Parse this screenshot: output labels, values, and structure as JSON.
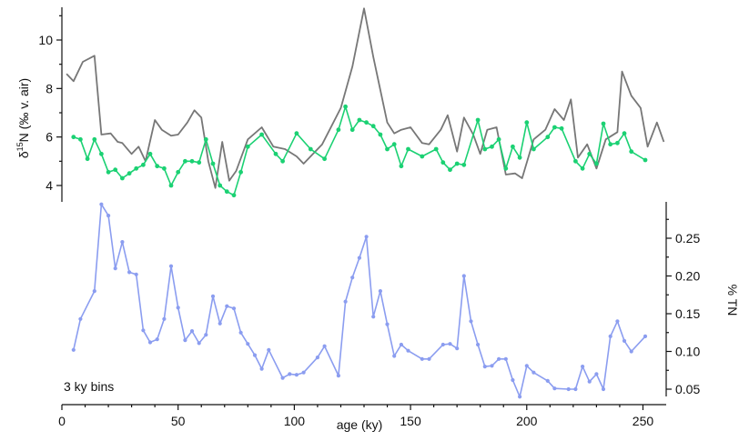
{
  "chart_data": {
    "type": "line",
    "x_axis": {
      "label": "age (ky)",
      "ticks": [
        0,
        50,
        100,
        150,
        200,
        250
      ],
      "range": [
        0,
        260
      ]
    },
    "y_axis_left": {
      "label_parts": [
        "δ",
        "15",
        "N (‰ v. air)"
      ],
      "ticks": [
        4,
        6,
        8,
        10
      ],
      "range": [
        3.4,
        11.4
      ]
    },
    "y_axis_right": {
      "label": "% TN",
      "ticks": [
        "0.05",
        "0.10",
        "0.15",
        "0.20",
        "0.25"
      ],
      "range": [
        0.04,
        0.29
      ]
    },
    "annotation": "3 ky bins",
    "colors": {
      "gray": "#777777",
      "green": "#1bd173",
      "blue": "#8b9df0"
    },
    "series": [
      {
        "axis": "left",
        "color": "#777777",
        "markers": false,
        "x": [
          2,
          5,
          9,
          14,
          17,
          21,
          24,
          26,
          30,
          33,
          36,
          40,
          43,
          47,
          50,
          54,
          57,
          60,
          63,
          66,
          69,
          72,
          75,
          80,
          86,
          91,
          96,
          101,
          104,
          112,
          120,
          125,
          130,
          134,
          140,
          143,
          146,
          150,
          155,
          158,
          163,
          166,
          170,
          173,
          177,
          180,
          183,
          187,
          191,
          195,
          198,
          203,
          208,
          212,
          216,
          219,
          222,
          226,
          230,
          234,
          239,
          241,
          245,
          249,
          252,
          256,
          259
        ],
        "y": [
          8.6,
          8.3,
          9.1,
          9.35,
          6.1,
          6.15,
          5.8,
          5.75,
          5.3,
          5.6,
          5.0,
          6.7,
          6.3,
          6.05,
          6.1,
          6.6,
          7.1,
          6.8,
          5.0,
          3.9,
          5.8,
          4.2,
          4.6,
          5.9,
          6.4,
          5.6,
          5.5,
          5.2,
          4.9,
          5.7,
          7.2,
          8.9,
          11.3,
          9.3,
          6.6,
          6.15,
          6.3,
          6.4,
          5.75,
          5.7,
          6.3,
          6.9,
          5.4,
          6.8,
          6.1,
          5.3,
          6.3,
          6.4,
          4.45,
          4.5,
          4.3,
          5.9,
          6.3,
          7.15,
          6.7,
          7.55,
          5.15,
          5.7,
          4.7,
          5.9,
          6.2,
          8.7,
          7.7,
          7.2,
          5.6,
          6.6,
          5.8
        ]
      },
      {
        "axis": "left",
        "color": "#1bd173",
        "markers": true,
        "x": [
          5,
          8,
          11,
          14,
          17,
          20,
          23,
          26,
          29,
          32,
          35,
          38,
          41,
          44,
          47,
          50,
          53,
          56,
          59,
          62,
          65,
          68,
          71,
          74,
          77,
          80,
          86,
          92,
          95,
          101,
          107,
          113,
          119,
          122,
          125,
          128,
          131,
          134,
          137,
          140,
          143,
          146,
          149,
          155,
          161,
          164,
          167,
          170,
          173,
          179,
          182,
          185,
          188,
          191,
          194,
          197,
          200,
          203,
          209,
          212,
          215,
          221,
          224,
          227,
          230,
          233,
          236,
          239,
          242,
          245,
          251
        ],
        "y": [
          6.0,
          5.9,
          5.1,
          5.9,
          5.3,
          4.55,
          4.65,
          4.3,
          4.5,
          4.7,
          4.85,
          5.3,
          4.8,
          4.7,
          4.0,
          4.55,
          5.0,
          5.0,
          4.95,
          5.9,
          4.9,
          4.0,
          3.75,
          3.6,
          4.55,
          5.6,
          6.1,
          5.3,
          5.0,
          6.15,
          5.5,
          5.1,
          6.3,
          7.25,
          6.3,
          6.7,
          6.6,
          6.45,
          6.1,
          5.5,
          5.7,
          4.8,
          5.5,
          5.2,
          5.5,
          4.95,
          4.65,
          4.9,
          4.85,
          6.7,
          5.5,
          5.6,
          5.9,
          4.7,
          5.6,
          5.15,
          6.6,
          5.5,
          6.0,
          6.4,
          6.35,
          5.0,
          4.7,
          5.3,
          4.9,
          6.55,
          5.7,
          5.75,
          6.15,
          5.4,
          5.05
        ]
      },
      {
        "axis": "right",
        "color": "#8b9df0",
        "markers": true,
        "x": [
          5,
          8,
          14,
          17,
          20,
          23,
          26,
          29,
          32,
          35,
          38,
          41,
          44,
          47,
          50,
          53,
          56,
          59,
          62,
          65,
          68,
          71,
          74,
          77,
          80,
          83,
          86,
          89,
          95,
          98,
          101,
          104,
          110,
          113,
          119,
          122,
          125,
          128,
          131,
          134,
          137,
          140,
          143,
          146,
          149,
          155,
          158,
          164,
          167,
          170,
          173,
          176,
          179,
          182,
          185,
          188,
          191,
          194,
          197,
          200,
          203,
          209,
          212,
          218,
          221,
          224,
          227,
          230,
          233,
          236,
          239,
          242,
          245,
          251
        ],
        "y": [
          0.102,
          0.143,
          0.18,
          0.295,
          0.28,
          0.21,
          0.245,
          0.205,
          0.202,
          0.128,
          0.112,
          0.116,
          0.143,
          0.213,
          0.158,
          0.115,
          0.127,
          0.111,
          0.122,
          0.173,
          0.137,
          0.16,
          0.157,
          0.125,
          0.11,
          0.095,
          0.077,
          0.102,
          0.065,
          0.07,
          0.069,
          0.072,
          0.092,
          0.107,
          0.068,
          0.166,
          0.198,
          0.224,
          0.252,
          0.146,
          0.18,
          0.136,
          0.094,
          0.109,
          0.101,
          0.09,
          0.09,
          0.109,
          0.11,
          0.104,
          0.2,
          0.14,
          0.109,
          0.08,
          0.081,
          0.09,
          0.09,
          0.062,
          0.04,
          0.081,
          0.072,
          0.061,
          0.051,
          0.05,
          0.05,
          0.08,
          0.06,
          0.07,
          0.05,
          0.12,
          0.14,
          0.114,
          0.1,
          0.12
        ]
      }
    ]
  }
}
